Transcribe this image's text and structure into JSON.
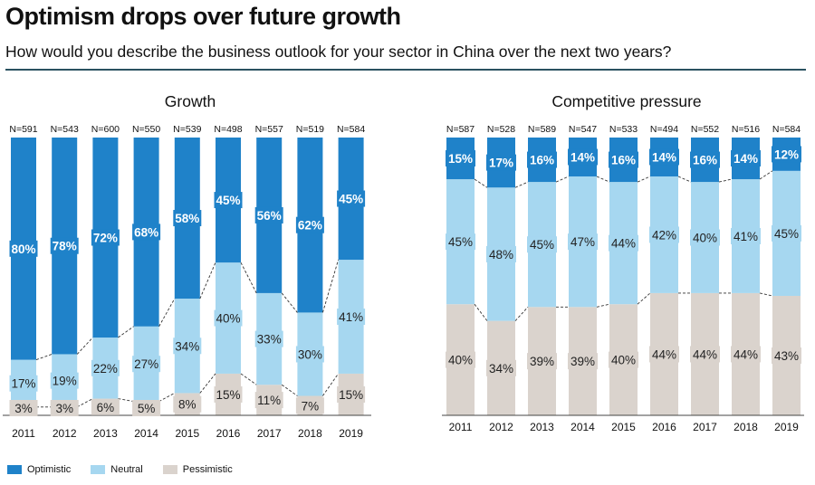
{
  "header": {
    "title": "Optimism drops over future growth",
    "subtitle": "How would you describe the business outlook for your sector in China over the next two years?"
  },
  "colors": {
    "optimistic": "#1f82c9",
    "neutral": "#a6d7f0",
    "pessimistic": "#dad3cd"
  },
  "legend": [
    {
      "key": "optimistic",
      "label": "Optimistic"
    },
    {
      "key": "neutral",
      "label": "Neutral"
    },
    {
      "key": "pessimistic",
      "label": "Pessimistic"
    }
  ],
  "chart_data": [
    {
      "type": "bar",
      "stacked": true,
      "title": "Growth",
      "categories": [
        "2011",
        "2012",
        "2013",
        "2014",
        "2015",
        "2016",
        "2017",
        "2018",
        "2019"
      ],
      "sample_sizes": [
        "N=591",
        "N=543",
        "N=600",
        "N=550",
        "N=539",
        "N=498",
        "N=557",
        "N=519",
        "N=584"
      ],
      "series": [
        {
          "name": "Pessimistic",
          "key": "pessimistic",
          "values": [
            3,
            3,
            6,
            5,
            8,
            15,
            11,
            7,
            15
          ]
        },
        {
          "name": "Neutral",
          "key": "neutral",
          "values": [
            17,
            19,
            22,
            27,
            34,
            40,
            33,
            30,
            41
          ]
        },
        {
          "name": "Optimistic",
          "key": "optimistic",
          "values": [
            80,
            78,
            72,
            68,
            58,
            45,
            56,
            62,
            45
          ]
        }
      ],
      "value_suffix": "%",
      "ylim": [
        0,
        100
      ]
    },
    {
      "type": "bar",
      "stacked": true,
      "title": "Competitive pressure",
      "categories": [
        "2011",
        "2012",
        "2013",
        "2014",
        "2015",
        "2016",
        "2017",
        "2018",
        "2019"
      ],
      "sample_sizes": [
        "N=587",
        "N=528",
        "N=589",
        "N=547",
        "N=533",
        "N=494",
        "N=552",
        "N=516",
        "N=584"
      ],
      "series": [
        {
          "name": "Pessimistic",
          "key": "pessimistic",
          "values": [
            40,
            34,
            39,
            39,
            40,
            44,
            44,
            44,
            43
          ]
        },
        {
          "name": "Neutral",
          "key": "neutral",
          "values": [
            45,
            48,
            45,
            47,
            44,
            42,
            40,
            41,
            45
          ]
        },
        {
          "name": "Optimistic",
          "key": "optimistic",
          "values": [
            15,
            17,
            16,
            14,
            16,
            14,
            16,
            14,
            12
          ]
        }
      ],
      "value_suffix": "%",
      "ylim": [
        0,
        100
      ]
    }
  ]
}
